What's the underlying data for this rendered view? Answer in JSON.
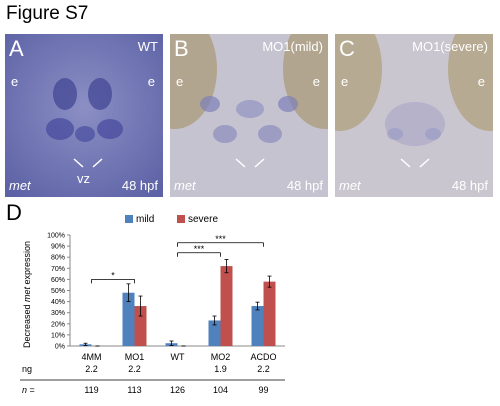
{
  "figure_title": "Figure S7",
  "panels": [
    {
      "letter": "A",
      "condition": "WT",
      "eye_left": "e",
      "eye_right": "e",
      "vz": "vz",
      "gene": "met",
      "stage": "48 hpf"
    },
    {
      "letter": "B",
      "condition": "MO1(mild)",
      "eye_left": "e",
      "eye_right": "e",
      "gene": "met",
      "stage": "48 hpf"
    },
    {
      "letter": "C",
      "condition": "MO1(severe)",
      "eye_left": "e",
      "eye_right": "e",
      "gene": "met",
      "stage": "48 hpf"
    }
  ],
  "panel_d": {
    "letter": "D",
    "ng_label": "ng",
    "n_label": "n =",
    "ng_values": [
      "2.2",
      "2.2",
      "",
      "1.9",
      "2.2"
    ],
    "n_values": [
      "119",
      "113",
      "126",
      "104",
      "99"
    ],
    "significance": [
      "*",
      "***",
      "***"
    ]
  },
  "colors": {
    "mild": "#4f81bd",
    "severe": "#c0504d"
  },
  "chart_data": {
    "type": "bar",
    "ylabel_parts": [
      "Decreased ",
      "met",
      " expression"
    ],
    "ylim": [
      0,
      100
    ],
    "yticks": [
      "0%",
      "10%",
      "20%",
      "30%",
      "40%",
      "50%",
      "60%",
      "70%",
      "80%",
      "90%",
      "100%"
    ],
    "categories": [
      "4MM",
      "MO1",
      "WT",
      "MO2",
      "ACDO"
    ],
    "series": [
      {
        "name": "mild",
        "values": [
          1.5,
          48,
          2.5,
          23,
          36
        ],
        "errors": [
          1,
          8,
          2,
          4,
          3.5
        ]
      },
      {
        "name": "severe",
        "values": [
          0,
          36,
          0,
          72,
          58
        ],
        "errors": [
          0,
          9,
          0,
          6,
          5
        ]
      }
    ],
    "legend_position": "top",
    "grid": false
  }
}
